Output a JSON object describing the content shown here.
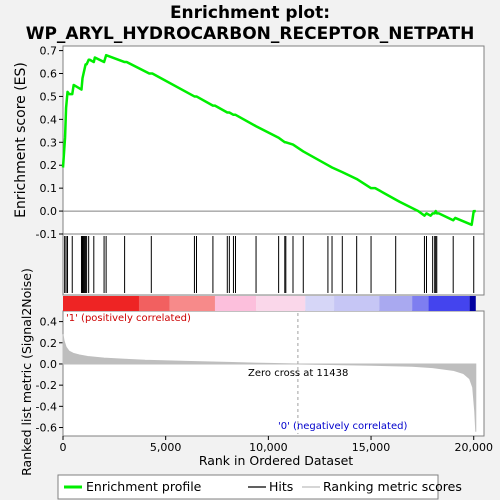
{
  "title_line1": "Enrichment plot:",
  "title_line2": "WP_ARYL_HYDROCARBON_RECEPTOR_NETPATH",
  "colors": {
    "es_line": "#00ee00",
    "hit": "#000000",
    "metric_fill": "#bebebe",
    "pos_text": "#cc0000",
    "neg_text": "#0000cc"
  },
  "chart_data": {
    "type": "line",
    "es_panel": {
      "ylabel": "Enrichment score (ES)",
      "ylim": [
        -0.1,
        0.72
      ],
      "yticks": [
        -0.1,
        0.0,
        0.1,
        0.2,
        0.3,
        0.4,
        0.5,
        0.6,
        0.7
      ],
      "ytick_labels": [
        "-0.1",
        "0.0",
        "0.1",
        "0.2",
        "0.3",
        "0.4",
        "0.5",
        "0.6",
        "0.7"
      ],
      "series": [
        {
          "name": "Enrichment profile",
          "x": [
            0,
            100,
            150,
            220,
            300,
            450,
            520,
            900,
            950,
            1000,
            1050,
            1100,
            1150,
            1250,
            1300,
            1500,
            1550,
            2000,
            2100,
            3000,
            3100,
            4200,
            4350,
            6400,
            6500,
            7300,
            7400,
            8000,
            8100,
            8300,
            8400,
            9400,
            10500,
            10800,
            10850,
            11200,
            11700,
            12900,
            13100,
            13600,
            14300,
            15000,
            15200,
            16200,
            16400,
            17300,
            17600,
            17700,
            17900,
            18000,
            18100,
            18150,
            18200,
            18300,
            19000,
            19100,
            19900,
            20000,
            20100
          ],
          "y": [
            0.19,
            0.32,
            0.45,
            0.52,
            0.51,
            0.51,
            0.55,
            0.53,
            0.58,
            0.6,
            0.62,
            0.64,
            0.64,
            0.66,
            0.66,
            0.65,
            0.67,
            0.65,
            0.68,
            0.65,
            0.65,
            0.6,
            0.6,
            0.5,
            0.5,
            0.46,
            0.46,
            0.43,
            0.43,
            0.42,
            0.42,
            0.37,
            0.32,
            0.3,
            0.3,
            0.29,
            0.26,
            0.2,
            0.19,
            0.17,
            0.14,
            0.1,
            0.1,
            0.05,
            0.04,
            0.0,
            -0.02,
            -0.01,
            -0.02,
            -0.01,
            -0.01,
            0.0,
            -0.01,
            -0.01,
            -0.04,
            -0.03,
            -0.06,
            0.0,
            0.0
          ]
        }
      ],
      "hits": [
        80,
        150,
        220,
        450,
        900,
        950,
        1000,
        1050,
        1100,
        1150,
        1250,
        1500,
        2000,
        2100,
        3000,
        4300,
        6400,
        6500,
        7300,
        8000,
        8100,
        8300,
        8400,
        9400,
        10500,
        10800,
        10850,
        11200,
        11700,
        12900,
        13100,
        13600,
        14300,
        15000,
        16200,
        17600,
        17700,
        18000,
        18100,
        18150,
        18200,
        19000,
        20000
      ]
    },
    "metric_panel": {
      "ylabel": "Ranked list metric (Signal2Noise)",
      "ylim": [
        -0.68,
        0.5
      ],
      "yticks": [
        -0.6,
        -0.4,
        -0.2,
        0.0,
        0.2,
        0.4
      ],
      "ytick_labels": [
        "-0.6",
        "-0.4",
        "-0.2",
        "0.0",
        "0.2",
        "0.4"
      ],
      "series": [
        {
          "name": "Ranking metric scores",
          "x": [
            0,
            50,
            150,
            300,
            500,
            800,
            1200,
            2000,
            3000,
            4000,
            6000,
            8000,
            10000,
            11438,
            13000,
            15000,
            17000,
            18000,
            19000,
            19500,
            19800,
            19950,
            20050,
            20100
          ],
          "y": [
            0.28,
            0.22,
            0.16,
            0.12,
            0.1,
            0.085,
            0.07,
            0.055,
            0.045,
            0.035,
            0.025,
            0.015,
            0.005,
            0.0,
            -0.005,
            -0.012,
            -0.022,
            -0.035,
            -0.06,
            -0.09,
            -0.14,
            -0.22,
            -0.45,
            -0.64
          ]
        }
      ],
      "zero_cross": 11438,
      "zero_cross_label": "Zero cross at 11438",
      "pos_label": "'1' (positively correlated)",
      "neg_label": "'0' (negatively correlated)"
    },
    "xaxis": {
      "label": "Rank in Ordered Dataset",
      "xlim": [
        0,
        20500
      ],
      "ticks": [
        0,
        5000,
        10000,
        15000,
        20000
      ],
      "tick_labels": [
        "0",
        "5,000",
        "10,000",
        "15,000",
        "20,000"
      ]
    },
    "legend": {
      "placement": "bottom",
      "entries": [
        "Enrichment profile",
        "Hits",
        "Ranking metric scores"
      ]
    }
  }
}
